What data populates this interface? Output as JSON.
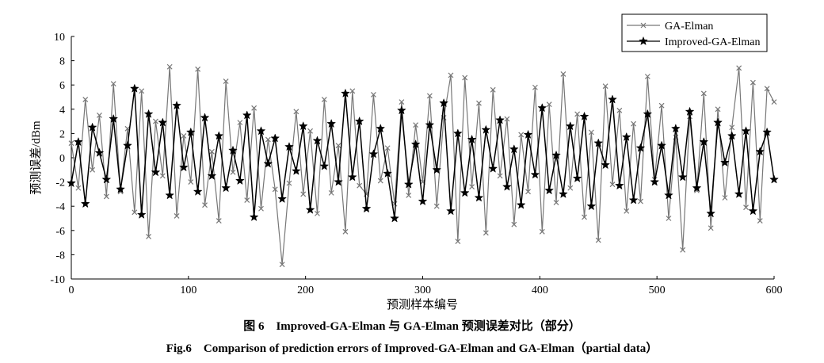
{
  "chart_data": {
    "type": "line",
    "caption_cn": "图 6　Improved-GA-Elman 与 GA-Elman 预测误差对比（部分）",
    "caption_en": "Fig.6　Comparison of prediction errors of Improved-GA-Elman and GA-Elman（partial data）",
    "x_label": "预测样本编号",
    "y_label": "预测误差/dBm",
    "x": [
      0,
      6,
      12,
      18,
      24,
      30,
      36,
      42,
      48,
      54,
      60,
      66,
      72,
      78,
      84,
      90,
      96,
      102,
      108,
      114,
      120,
      126,
      132,
      138,
      144,
      150,
      156,
      162,
      168,
      174,
      180,
      186,
      192,
      198,
      204,
      210,
      216,
      222,
      228,
      234,
      240,
      246,
      252,
      258,
      264,
      270,
      276,
      282,
      288,
      294,
      300,
      306,
      312,
      318,
      324,
      330,
      336,
      342,
      348,
      354,
      360,
      366,
      372,
      378,
      384,
      390,
      396,
      402,
      408,
      414,
      420,
      426,
      432,
      438,
      444,
      450,
      456,
      462,
      468,
      474,
      480,
      486,
      492,
      498,
      504,
      510,
      516,
      522,
      528,
      534,
      540,
      546,
      552,
      558,
      564,
      570,
      576,
      582,
      588,
      594,
      600
    ],
    "series": [
      {
        "name": "GA-Elman",
        "color": "#777777",
        "marker": "x",
        "values": [
          1.2,
          -2.5,
          4.8,
          -1.0,
          3.5,
          -3.2,
          6.1,
          -2.8,
          2.4,
          -4.5,
          5.5,
          -6.5,
          3.0,
          -1.5,
          7.5,
          -4.8,
          1.8,
          -2.0,
          7.3,
          -3.9,
          0.5,
          -5.2,
          6.3,
          -1.2,
          2.9,
          -3.5,
          4.1,
          -4.2,
          1.5,
          -2.6,
          -8.8,
          -2.1,
          3.8,
          -3.0,
          2.2,
          -4.6,
          4.8,
          -2.9,
          1.0,
          -6.1,
          5.5,
          -2.3,
          -3.0,
          5.2,
          -1.9,
          0.8,
          -3.8,
          4.6,
          -3.1,
          2.7,
          -2.0,
          5.1,
          -4.0,
          3.3,
          6.8,
          -6.9,
          6.6,
          -2.4,
          4.5,
          -6.2,
          5.6,
          -1.5,
          3.2,
          -5.5,
          1.9,
          -2.8,
          5.8,
          -6.1,
          4.4,
          -3.7,
          6.9,
          -2.5,
          3.6,
          -4.9,
          2.1,
          -6.8,
          5.9,
          -2.2,
          3.9,
          -4.4,
          2.8,
          -3.6,
          6.7,
          -1.8,
          4.3,
          -5.0,
          1.7,
          -7.6,
          3.4,
          -2.7,
          5.3,
          -5.8,
          4.0,
          -3.3,
          2.5,
          7.4,
          -4.1,
          6.2,
          -5.2,
          5.7,
          4.6
        ]
      },
      {
        "name": "Improved-GA-Elman",
        "color": "#000000",
        "marker": "star",
        "values": [
          -2.1,
          1.3,
          -3.8,
          2.5,
          0.4,
          -1.8,
          3.2,
          -2.6,
          1.0,
          5.7,
          -4.7,
          3.6,
          -1.2,
          2.9,
          -3.1,
          4.3,
          -0.8,
          2.1,
          -2.8,
          3.3,
          -1.5,
          1.8,
          -2.5,
          0.6,
          -1.9,
          3.5,
          -4.9,
          2.2,
          -0.5,
          1.6,
          -3.4,
          0.9,
          -1.1,
          2.6,
          -4.3,
          1.4,
          -0.7,
          2.8,
          -2.0,
          5.3,
          -1.6,
          3.0,
          -4.2,
          0.3,
          2.4,
          -1.3,
          -5.0,
          3.9,
          -2.2,
          1.1,
          -3.6,
          2.7,
          -1.0,
          4.5,
          -4.4,
          2.0,
          -2.9,
          1.5,
          -3.3,
          2.3,
          -0.9,
          3.1,
          -2.4,
          0.7,
          -3.9,
          1.9,
          -1.4,
          4.1,
          -2.7,
          0.2,
          -3.0,
          2.6,
          -1.7,
          3.4,
          -4.0,
          1.2,
          -0.6,
          4.8,
          -2.3,
          1.7,
          -3.5,
          0.8,
          3.6,
          -2.0,
          1.0,
          -3.1,
          2.4,
          -1.6,
          3.8,
          -2.5,
          1.3,
          -4.6,
          2.9,
          -0.4,
          1.8,
          -3.0,
          2.2,
          -4.4,
          0.5,
          2.1,
          -1.8
        ]
      }
    ],
    "xlim": [
      0,
      600
    ],
    "xticks": [
      0,
      100,
      200,
      300,
      400,
      500,
      600
    ],
    "ylim": [
      -10,
      10
    ],
    "yticks": [
      -10,
      -8,
      -6,
      -4,
      -2,
      0,
      2,
      4,
      6,
      8,
      10
    ],
    "grid": false,
    "legend": "upper right"
  }
}
